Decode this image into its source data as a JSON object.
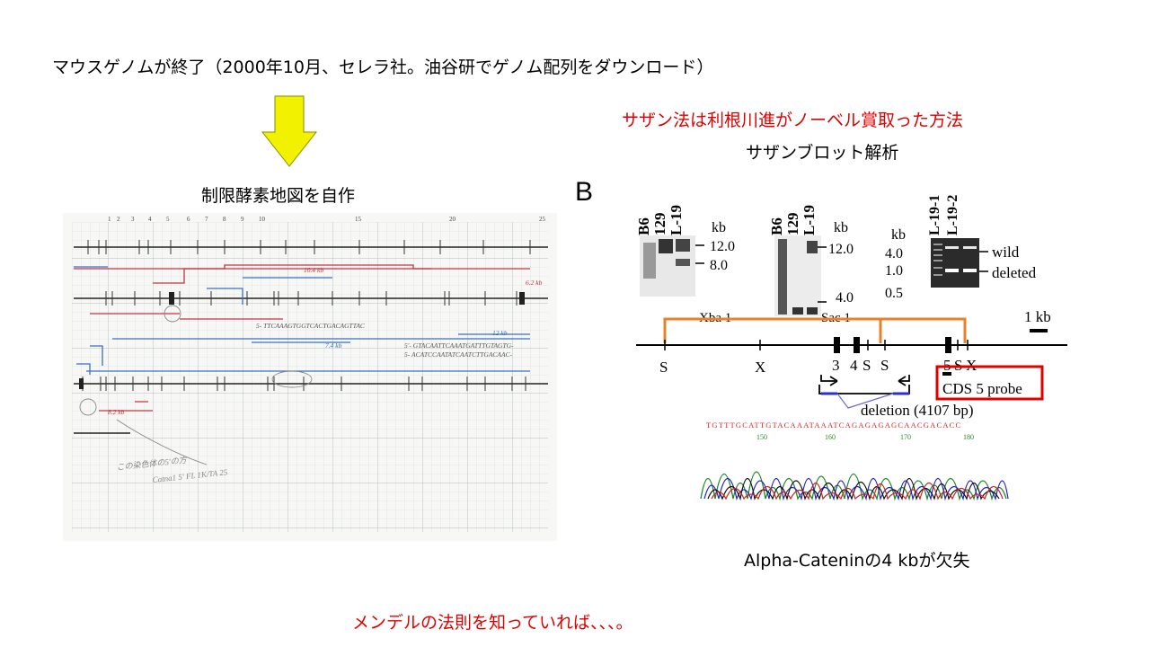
{
  "slide": {
    "headline": "マウスゲノムが終了（2000年10月、セレラ社。油谷研でゲノム配列をダウンロード）",
    "restriction_map_title": "制限酵素地図を自作",
    "southern_note": "サザン法は利根川進がノーベル賞取った方法",
    "southern_title": "サザンブロット解析",
    "alpha_caption": "Alpha-Cateninの4 kbが欠失",
    "mendel_note": "メンデルの法則を知っていれば、、、。",
    "colors": {
      "arrow": "#f2f200",
      "red": "#e00000",
      "orange": "#e8822a",
      "box": "#e00000"
    }
  },
  "figure_b": {
    "panel_label": "B",
    "blot1": {
      "lanes": [
        "B6",
        "129",
        "L-19"
      ],
      "unit": "kb",
      "markers": [
        "12.0",
        "8.0"
      ],
      "enzyme": "Xba 1"
    },
    "blot2": {
      "lanes": [
        "B6",
        "129",
        "L-19"
      ],
      "unit": "kb",
      "markers": [
        "12.0",
        "4.0"
      ],
      "enzyme": "Sac 1"
    },
    "gel": {
      "lanes": [
        "L-19-1",
        "L-19-2"
      ],
      "unit": "kb",
      "ladder": [
        "4.0",
        "1.0",
        "0.5"
      ],
      "bands": [
        "wild",
        "deleted"
      ]
    },
    "map": {
      "scale": "1 kb",
      "sites": [
        "S",
        "X",
        "3",
        "4",
        "S",
        "S",
        "5",
        "S",
        "X"
      ],
      "probe": "CDS 5 probe",
      "deletion": "deletion (4107 bp)"
    },
    "chromatogram": {
      "sequence": "TGTTTGCATTGTACAAATAAATCAGAGAGAGCAACGACACC",
      "positions": [
        "150",
        "160",
        "170",
        "180"
      ]
    }
  },
  "notebook": {
    "top_numbers": [
      "1",
      "2",
      "3",
      "4",
      "5",
      "6",
      "7",
      "8",
      "9",
      "10",
      "15",
      "20",
      "25"
    ],
    "handwriting": [
      "5- TTCAAAGTGGTCACTGACAGTTAC",
      "5'- GTACAATTCAAATGATTTGTAGTG-",
      "5- ACATCCAATATCAATCTTGACAAC-",
      "10.4 kb",
      "7.4 kb",
      "12 kb",
      "8.2 kb",
      "6.2 kb",
      "この染色体の5'の方",
      "Catna1 5' FL 1K/TA 25"
    ]
  }
}
